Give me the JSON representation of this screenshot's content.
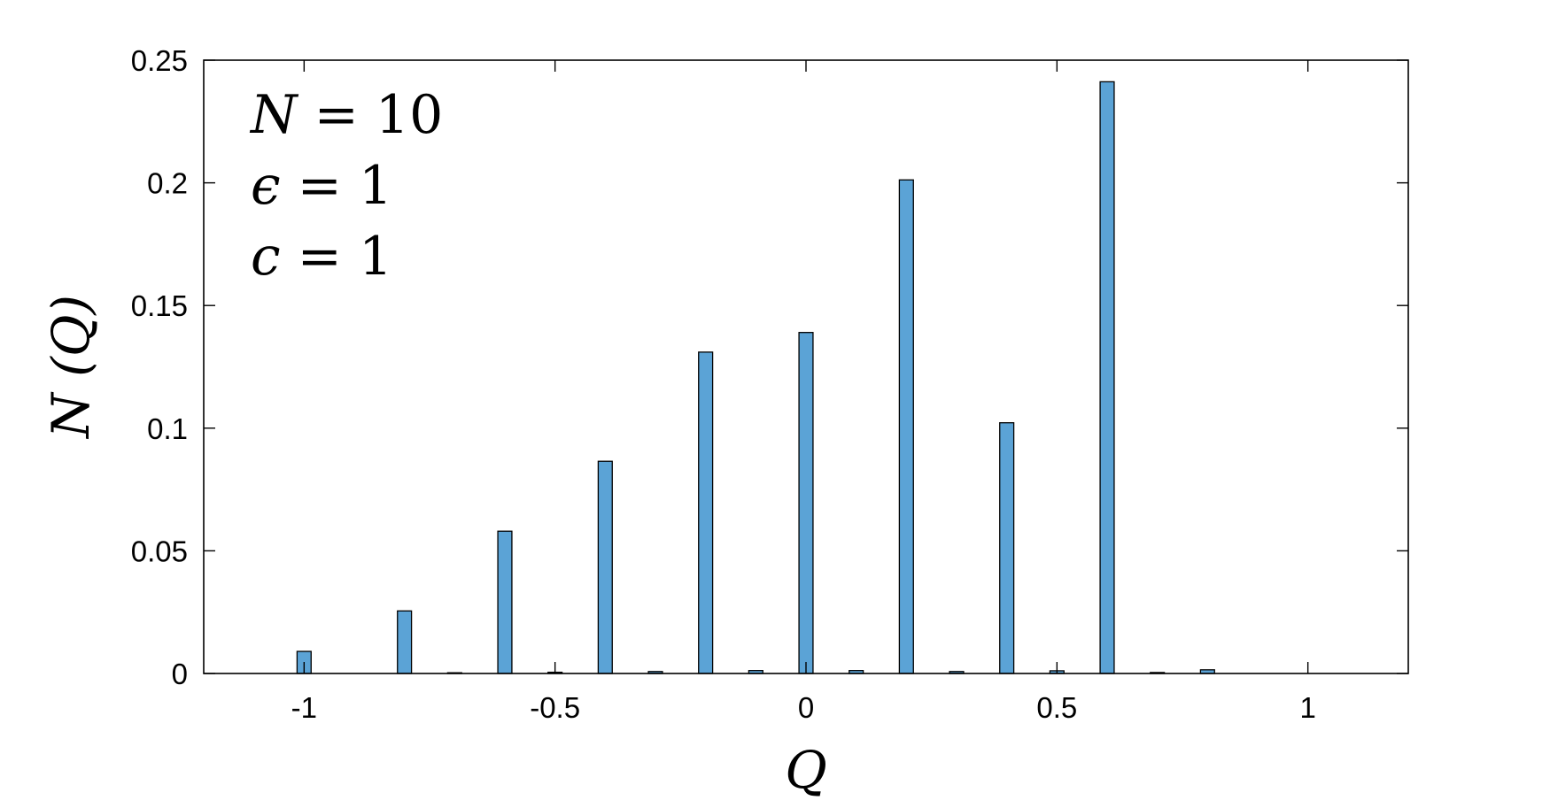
{
  "chart_data": {
    "type": "bar",
    "xlabel": "Q",
    "ylabel": "N (Q)",
    "xlim": [
      -1.2,
      1.2
    ],
    "ylim": [
      0,
      0.25
    ],
    "x_ticks": [
      {
        "value": -1,
        "label": "-1"
      },
      {
        "value": -0.5,
        "label": "-0.5"
      },
      {
        "value": 0,
        "label": "0"
      },
      {
        "value": 0.5,
        "label": "0.5"
      },
      {
        "value": 1,
        "label": "1"
      }
    ],
    "y_ticks": [
      {
        "value": 0,
        "label": "0"
      },
      {
        "value": 0.05,
        "label": "0.05"
      },
      {
        "value": 0.1,
        "label": "0.1"
      },
      {
        "value": 0.15,
        "label": "0.15"
      },
      {
        "value": 0.2,
        "label": "0.2"
      },
      {
        "value": 0.25,
        "label": "0.25"
      }
    ],
    "bar_width": 0.028,
    "bar_color": "#5ba3d6",
    "bar_edge_color": "#000000",
    "grid": false,
    "x": [
      -1.0,
      -0.9,
      -0.8,
      -0.7,
      -0.6,
      -0.5,
      -0.4,
      -0.3,
      -0.2,
      -0.1,
      0.0,
      0.1,
      0.2,
      0.3,
      0.4,
      0.5,
      0.6,
      0.7,
      0.8
    ],
    "values": [
      0.009,
      0.0,
      0.0255,
      0.0003,
      0.058,
      0.0005,
      0.0865,
      0.0008,
      0.131,
      0.0012,
      0.139,
      0.0012,
      0.2012,
      0.0008,
      0.1022,
      0.0011,
      0.2412,
      0.0004,
      0.0015
    ],
    "annotations": [
      {
        "var": "N",
        "rest": " = 10"
      },
      {
        "var": "ϵ",
        "rest": " = 1"
      },
      {
        "var": "c",
        "rest": " = 1"
      }
    ]
  }
}
